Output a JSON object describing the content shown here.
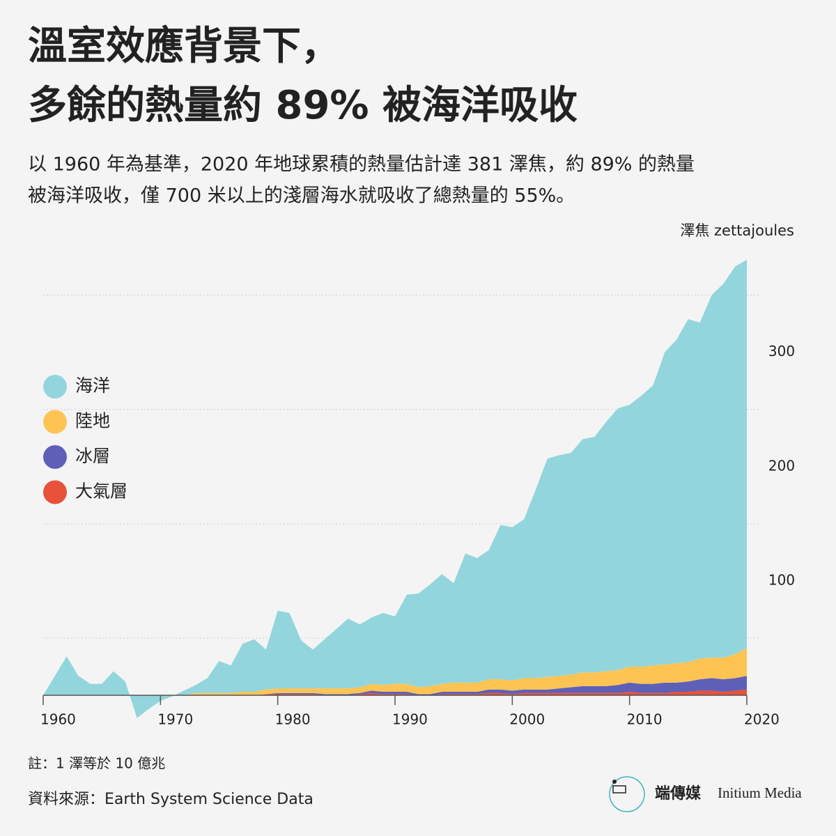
{
  "header": {
    "title_lines": [
      "溫室效應背景下，",
      "多餘的熱量約 89% 被海洋吸收"
    ],
    "subtitle_lines": [
      "以 1960 年為基準，2020 年地球累積的熱量估計達 381 澤焦，約 89% 的熱量",
      "被海洋吸收，僅 700 米以上的淺層海水就吸收了總熱量的 55%。"
    ]
  },
  "chart_data": {
    "type": "stacked_area",
    "y_unit_label": "澤焦 zettajoules",
    "x": [
      1960,
      1961,
      1962,
      1963,
      1964,
      1965,
      1966,
      1967,
      1968,
      1969,
      1970,
      1971,
      1972,
      1973,
      1974,
      1975,
      1976,
      1977,
      1978,
      1979,
      1980,
      1981,
      1982,
      1983,
      1984,
      1985,
      1986,
      1987,
      1988,
      1989,
      1990,
      1991,
      1992,
      1993,
      1994,
      1995,
      1996,
      1997,
      1998,
      1999,
      2000,
      2001,
      2002,
      2003,
      2004,
      2005,
      2006,
      2007,
      2008,
      2009,
      2010,
      2011,
      2012,
      2013,
      2014,
      2015,
      2016,
      2017,
      2018,
      2019,
      2020
    ],
    "series": [
      {
        "name": "海洋",
        "color": "#93d5dd",
        "values": [
          0,
          17,
          34,
          17,
          10,
          10,
          21,
          12,
          -20,
          -12,
          -5,
          -1,
          4,
          7,
          13,
          28,
          24,
          42,
          46,
          35,
          68,
          66,
          42,
          34,
          43,
          52,
          61,
          55,
          58,
          63,
          59,
          78,
          82,
          89,
          96,
          87,
          113,
          109,
          113,
          135,
          134,
          139,
          165,
          191,
          193,
          194,
          204,
          206,
          218,
          229,
          229,
          237,
          245,
          273,
          283,
          300,
          294,
          317,
          327,
          339,
          340
        ]
      },
      {
        "name": "陸地",
        "color": "#fdc454",
        "values": [
          0,
          0,
          0,
          0,
          0,
          0,
          0,
          0,
          0,
          0,
          0,
          0,
          0,
          2,
          2,
          2,
          2,
          3,
          3,
          4,
          4,
          4,
          4,
          4,
          5,
          5,
          5,
          5,
          6,
          6,
          7,
          7,
          6,
          7,
          7,
          8,
          8,
          8,
          9,
          9,
          9,
          10,
          10,
          11,
          11,
          11,
          12,
          12,
          13,
          13,
          14,
          15,
          16,
          16,
          17,
          17,
          18,
          18,
          19,
          21,
          24
        ]
      },
      {
        "name": "冰層",
        "color": "#5e60b8",
        "values": [
          0,
          0,
          0,
          0,
          0,
          0,
          0,
          0,
          0,
          0,
          0,
          0,
          0,
          0,
          0,
          0,
          0,
          0,
          0,
          0,
          1,
          1,
          1,
          1,
          1,
          1,
          1,
          1,
          2,
          2,
          2,
          2,
          1,
          1,
          2,
          2,
          2,
          2,
          3,
          3,
          3,
          3,
          3,
          3,
          4,
          5,
          6,
          6,
          6,
          7,
          8,
          8,
          8,
          9,
          8,
          9,
          10,
          11,
          11,
          11,
          12
        ]
      },
      {
        "name": "大氣層",
        "color": "#e8513a",
        "values": [
          0,
          0,
          0,
          0,
          0,
          0,
          0,
          0,
          0,
          0,
          0,
          0,
          0,
          0,
          0,
          0,
          0,
          0,
          0,
          1,
          1,
          1,
          1,
          1,
          0,
          0,
          0,
          1,
          2,
          1,
          1,
          1,
          0,
          0,
          1,
          1,
          1,
          1,
          2,
          2,
          1,
          2,
          2,
          2,
          2,
          2,
          2,
          2,
          2,
          2,
          3,
          2,
          2,
          2,
          3,
          3,
          4,
          4,
          3,
          4,
          5
        ]
      }
    ],
    "xlim": [
      1960,
      2020
    ],
    "xticks": [
      1960,
      1970,
      1980,
      1990,
      2000,
      2010,
      2020
    ],
    "ylim": [
      -25,
      390
    ],
    "yticks": [
      100,
      200,
      300
    ],
    "grid_lines": [
      50,
      150,
      250,
      350
    ],
    "note": "註：1 澤等於 10 億兆",
    "source": "資料來源：Earth System Science Data"
  },
  "brand": {
    "name_zh": "端傳媒",
    "name_en": "Initium Media"
  }
}
